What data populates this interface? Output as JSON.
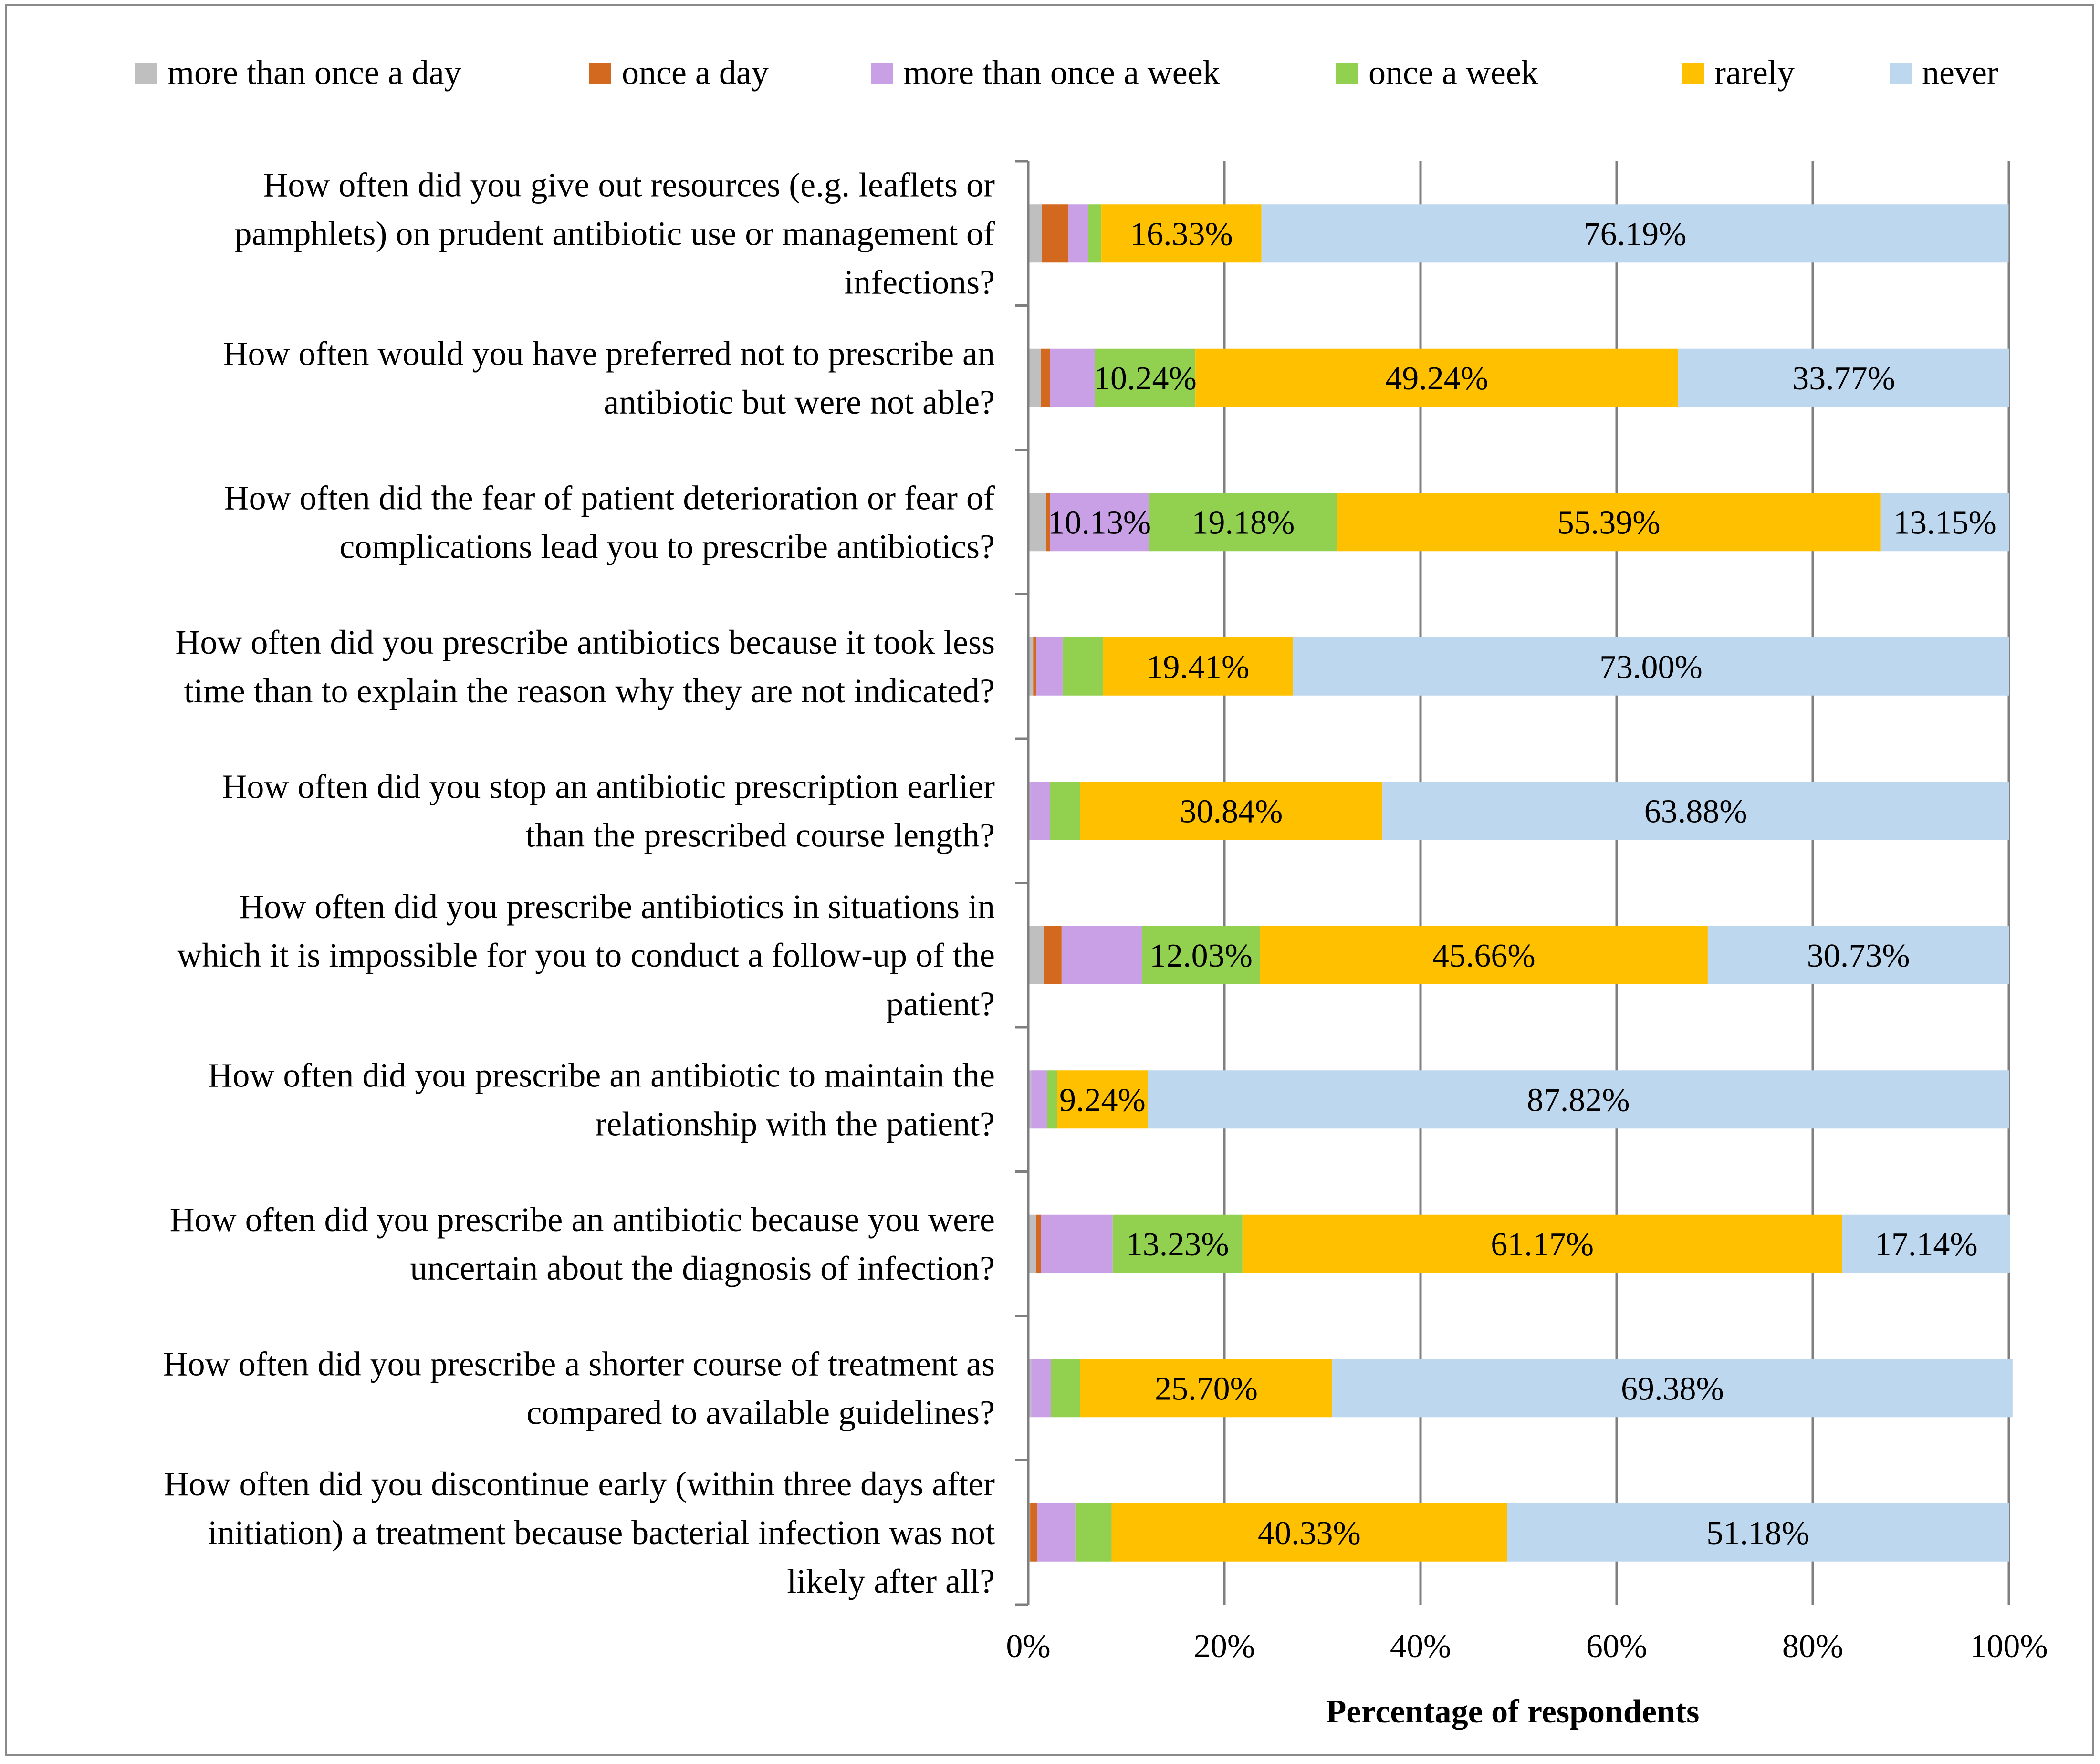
{
  "chart_data": {
    "type": "bar",
    "orientation": "horizontal",
    "stacked": "percent",
    "xlabel": "Percentage of respondents",
    "xlim": [
      0,
      100
    ],
    "x_ticks": [
      "0%",
      "20%",
      "40%",
      "60%",
      "80%",
      "100%"
    ],
    "grid": true,
    "legend_position": "top",
    "colors": {
      "more than once a day": "#bfbfbf",
      "once a day": "#d2691e",
      "more than once a week": "#c9a0e6",
      "once a week": "#92d050",
      "rarely": "#ffc000",
      "never": "#bdd7ee"
    },
    "series": [
      {
        "name": "more than once a day",
        "values": [
          1.4,
          1.3,
          1.8,
          0.5,
          0.2,
          1.6,
          0.3,
          0.8,
          0.3,
          0.2
        ]
      },
      {
        "name": "once a day",
        "values": [
          2.7,
          0.9,
          0.4,
          0.3,
          0.0,
          1.8,
          0.0,
          0.5,
          0.0,
          0.7
        ]
      },
      {
        "name": "more than once a week",
        "values": [
          2.0,
          4.6,
          10.13,
          2.7,
          2.0,
          8.2,
          1.6,
          7.3,
          2.0,
          3.9
        ]
      },
      {
        "name": "once a week",
        "values": [
          1.35,
          10.24,
          19.18,
          4.09,
          3.08,
          12.03,
          1.04,
          13.23,
          3.0,
          3.69
        ]
      },
      {
        "name": "rarely",
        "values": [
          16.33,
          49.24,
          55.39,
          19.41,
          30.84,
          45.66,
          9.24,
          61.17,
          25.7,
          40.33
        ]
      },
      {
        "name": "never",
        "values": [
          76.19,
          33.77,
          13.15,
          73.0,
          63.88,
          30.73,
          87.82,
          17.14,
          69.38,
          51.18
        ]
      }
    ],
    "data_labels": [
      [
        null,
        null,
        null,
        null,
        "16.33%",
        "76.19%"
      ],
      [
        null,
        null,
        null,
        "10.24%",
        "49.24%",
        "33.77%"
      ],
      [
        null,
        null,
        "10.13%",
        "19.18%",
        "55.39%",
        "13.15%"
      ],
      [
        null,
        null,
        null,
        null,
        "19.41%",
        "73.00%"
      ],
      [
        null,
        null,
        null,
        null,
        "30.84%",
        "63.88%"
      ],
      [
        null,
        null,
        null,
        "12.03%",
        "45.66%",
        "30.73%"
      ],
      [
        null,
        null,
        null,
        null,
        "9.24%",
        "87.82%"
      ],
      [
        null,
        null,
        null,
        "13.23%",
        "61.17%",
        "17.14%"
      ],
      [
        null,
        null,
        null,
        null,
        "25.70%",
        "69.38%"
      ],
      [
        null,
        null,
        null,
        null,
        "40.33%",
        "51.18%"
      ]
    ],
    "categories": [
      [
        "How often did you give out resources (e.g. leaflets or",
        "pamphlets) on prudent antibiotic use or management of",
        "infections?"
      ],
      [
        "How often would you have preferred not to prescribe an",
        "antibiotic but were not able?"
      ],
      [
        "How often did the fear of patient deterioration or fear of",
        "complications lead you to prescribe antibiotics?"
      ],
      [
        "How often did you prescribe antibiotics because it took less",
        "time than to explain the reason why they are not indicated?"
      ],
      [
        "How often did you stop an antibiotic prescription earlier",
        "than the prescribed course length?"
      ],
      [
        "How often did you prescribe antibiotics in situations in",
        "which it is impossible for you to conduct a follow-up of the",
        "patient?"
      ],
      [
        "How often did you prescribe an antibiotic to maintain the",
        "relationship with the patient?"
      ],
      [
        "How often did you prescribe an antibiotic because you were",
        "uncertain about the diagnosis of infection?"
      ],
      [
        "How often did you prescribe a shorter course of treatment as",
        "compared to available guidelines?"
      ],
      [
        "How often did you discontinue early (within three days after",
        "initiation) a treatment because bacterial infection was not",
        "likely after all?"
      ]
    ]
  }
}
